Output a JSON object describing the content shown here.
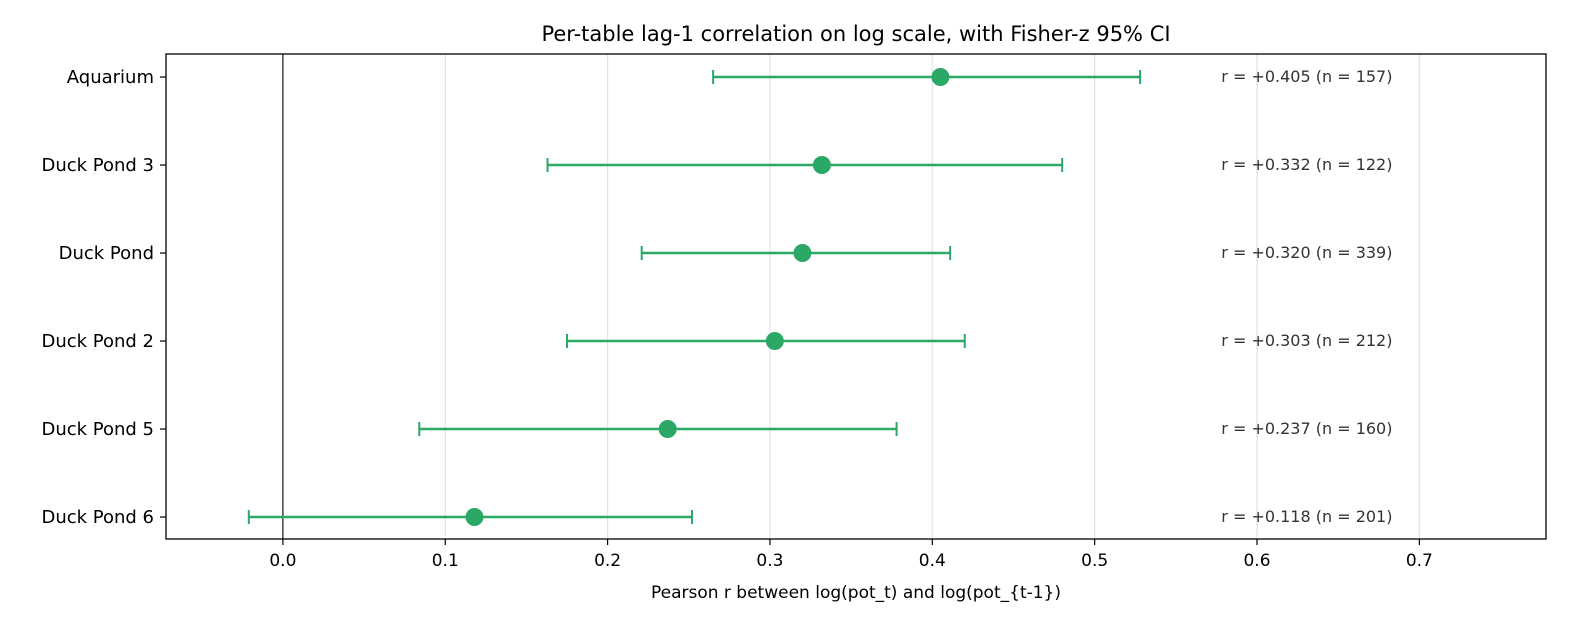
{
  "chart_data": {
    "type": "errorbar",
    "title": "Per-table lag-1 correlation on log scale, with Fisher-z 95% CI",
    "xlabel": "Pearson r between log(pot_t) and log(pot_{t-1})",
    "ylabel": "",
    "xlim": [
      -0.072,
      0.778
    ],
    "xticks": [
      0.0,
      0.1,
      0.2,
      0.3,
      0.4,
      0.5,
      0.6,
      0.7
    ],
    "xtick_labels": [
      "0.0",
      "0.1",
      "0.2",
      "0.3",
      "0.4",
      "0.5",
      "0.6",
      "0.7"
    ],
    "grid": "vertical",
    "zero_line": true,
    "color": "#2ca866",
    "categories": [
      "Aquarium",
      "Duck Pond 3",
      "Duck Pond",
      "Duck Pond 2",
      "Duck Pond 5",
      "Duck Pond 6"
    ],
    "values": [
      0.405,
      0.332,
      0.32,
      0.303,
      0.237,
      0.118
    ],
    "ci_low": [
      0.265,
      0.163,
      0.221,
      0.175,
      0.084,
      -0.021
    ],
    "ci_high": [
      0.528,
      0.48,
      0.411,
      0.42,
      0.378,
      0.252
    ],
    "annotations": [
      "r = +0.405  (n = 157)",
      "r = +0.332  (n = 122)",
      "r = +0.320  (n = 339)",
      "r = +0.303  (n = 212)",
      "r = +0.237  (n = 160)",
      "r = +0.118  (n = 201)"
    ],
    "annotation_x": 0.578
  }
}
